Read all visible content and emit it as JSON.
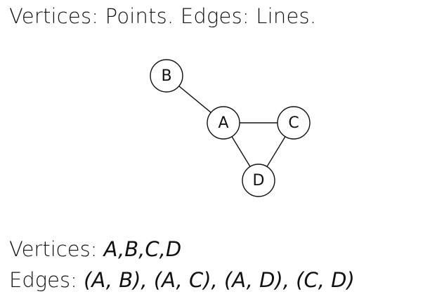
{
  "heading": "Vertices: Points. Edges: Lines.",
  "graph": {
    "nodes": [
      {
        "id": "B",
        "label": "B"
      },
      {
        "id": "A",
        "label": "A"
      },
      {
        "id": "C",
        "label": "C"
      },
      {
        "id": "D",
        "label": "D"
      }
    ],
    "edges": [
      {
        "from": "A",
        "to": "B"
      },
      {
        "from": "A",
        "to": "C"
      },
      {
        "from": "A",
        "to": "D"
      },
      {
        "from": "C",
        "to": "D"
      }
    ]
  },
  "vertices_line": {
    "label": "Vertices:",
    "value": "A,B,C,D"
  },
  "edges_line": {
    "label": "Edges:",
    "value": "(A, B), (A, C), (A, D), (C, D)"
  }
}
